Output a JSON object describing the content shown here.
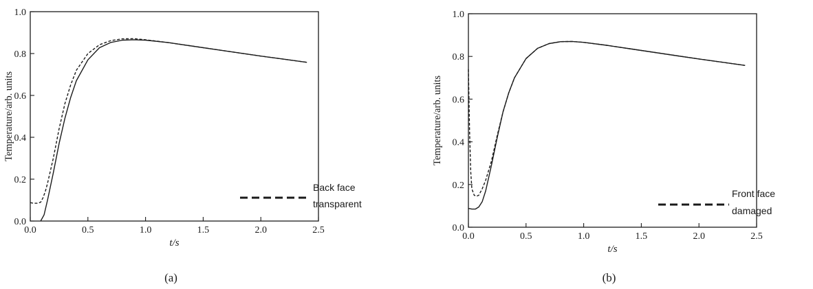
{
  "colors": {
    "ink": "#1a1a1a",
    "background": "#ffffff"
  },
  "chart_data": [
    {
      "type": "line",
      "panel_label": "(a)",
      "xlabel": "t/s",
      "ylabel": "Temperature/arb. units",
      "xlim": [
        0,
        2.5
      ],
      "ylim": [
        0,
        1.0
      ],
      "xticks": [
        "0.0",
        "0.5",
        "1.0",
        "1.5",
        "2.0",
        "2.5"
      ],
      "yticks": [
        "0.0",
        "0.2",
        "0.4",
        "0.6",
        "0.8",
        "1.0"
      ],
      "grid": false,
      "legend_position": "bottom-right",
      "series": [
        {
          "style": "solid",
          "x": [
            0.09,
            0.12,
            0.15,
            0.2,
            0.25,
            0.3,
            0.35,
            0.4,
            0.5,
            0.6,
            0.7,
            0.8,
            0.9,
            1.0,
            1.2,
            1.4,
            1.6,
            1.8,
            2.0,
            2.2,
            2.4
          ],
          "y": [
            0.0,
            0.03,
            0.1,
            0.23,
            0.37,
            0.49,
            0.59,
            0.67,
            0.77,
            0.828,
            0.853,
            0.864,
            0.866,
            0.864,
            0.852,
            0.836,
            0.82,
            0.804,
            0.788,
            0.773,
            0.758
          ]
        },
        {
          "name": "Back face transparent",
          "style": "dashed",
          "x": [
            0.0,
            0.03,
            0.06,
            0.09,
            0.11,
            0.13,
            0.15,
            0.2,
            0.25,
            0.3,
            0.35,
            0.4,
            0.5,
            0.6,
            0.7,
            0.8,
            0.9,
            1.0,
            1.2,
            1.4,
            1.6,
            1.8,
            2.0,
            2.2,
            2.4
          ],
          "y": [
            0.088,
            0.085,
            0.085,
            0.09,
            0.11,
            0.14,
            0.18,
            0.3,
            0.44,
            0.56,
            0.65,
            0.72,
            0.8,
            0.842,
            0.862,
            0.87,
            0.871,
            0.866,
            0.852,
            0.836,
            0.82,
            0.804,
            0.788,
            0.773,
            0.758
          ]
        }
      ]
    },
    {
      "type": "line",
      "panel_label": "(b)",
      "xlabel": "t/s",
      "ylabel": "Temperature/arb. units",
      "xlim": [
        0,
        2.5
      ],
      "ylim": [
        0,
        1.0
      ],
      "xticks": [
        "0.0",
        "0.5",
        "1.0",
        "1.5",
        "2.0",
        "2.5"
      ],
      "yticks": [
        "0.0",
        "0.2",
        "0.4",
        "0.6",
        "0.8",
        "1.0"
      ],
      "grid": false,
      "legend_position": "bottom-right",
      "series": [
        {
          "style": "solid",
          "x": [
            0.0,
            0.03,
            0.06,
            0.09,
            0.12,
            0.15,
            0.2,
            0.25,
            0.3,
            0.35,
            0.4,
            0.5,
            0.6,
            0.7,
            0.8,
            0.9,
            1.0,
            1.2,
            1.4,
            1.6,
            1.8,
            2.0,
            2.2,
            2.4
          ],
          "y": [
            0.088,
            0.085,
            0.085,
            0.095,
            0.12,
            0.17,
            0.29,
            0.42,
            0.54,
            0.63,
            0.7,
            0.79,
            0.838,
            0.86,
            0.869,
            0.87,
            0.866,
            0.852,
            0.836,
            0.82,
            0.804,
            0.788,
            0.773,
            0.758
          ]
        },
        {
          "name": "Front face damaged",
          "style": "dashed",
          "x": [
            0.0,
            0.01,
            0.02,
            0.03,
            0.05,
            0.07,
            0.09,
            0.12,
            0.15,
            0.2,
            0.25,
            0.3,
            0.35,
            0.4,
            0.5,
            0.6,
            0.7,
            0.8,
            0.9,
            1.0,
            1.2,
            1.4,
            1.6,
            1.8,
            2.0,
            2.2,
            2.4
          ],
          "y": [
            0.74,
            0.45,
            0.26,
            0.18,
            0.15,
            0.145,
            0.15,
            0.18,
            0.22,
            0.31,
            0.43,
            0.54,
            0.63,
            0.7,
            0.79,
            0.838,
            0.86,
            0.869,
            0.87,
            0.866,
            0.852,
            0.836,
            0.82,
            0.804,
            0.788,
            0.773,
            0.758
          ]
        }
      ]
    }
  ]
}
